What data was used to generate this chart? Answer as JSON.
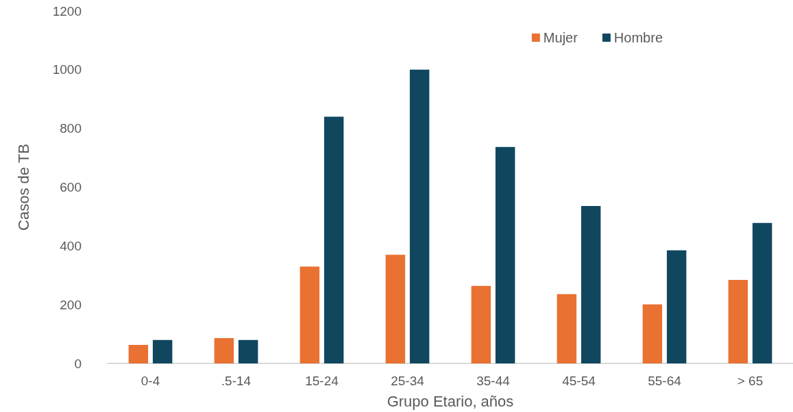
{
  "chart_data": {
    "type": "bar",
    "xlabel": "Grupo Etario, años",
    "ylabel": "Casos de TB",
    "categories": [
      "0-4",
      ".5-14",
      "15-24",
      "25-34",
      "35-44",
      "45-54",
      "55-64",
      "> 65"
    ],
    "series": [
      {
        "name": "Mujer",
        "color": "#e97132",
        "values": [
          63,
          86,
          330,
          370,
          264,
          236,
          201,
          284
        ]
      },
      {
        "name": "Hombre",
        "color": "#10475f",
        "values": [
          80,
          80,
          840,
          1000,
          737,
          536,
          385,
          478
        ]
      }
    ],
    "ylim": [
      0,
      1200
    ],
    "yticks": [
      0,
      200,
      400,
      600,
      800,
      1000,
      1200
    ],
    "grid": false,
    "legend": "top right"
  }
}
